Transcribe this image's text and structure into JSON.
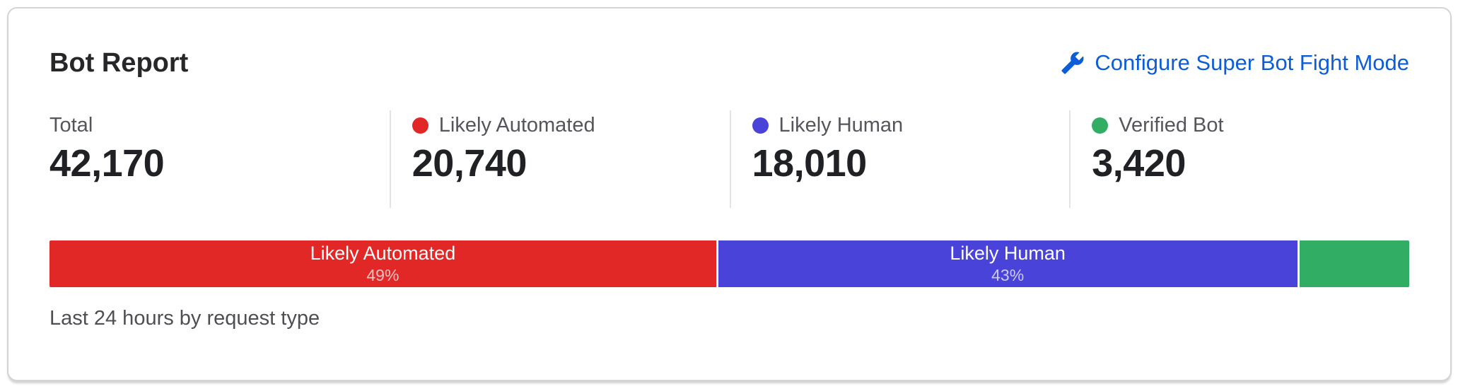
{
  "header": {
    "title": "Bot Report",
    "configure_link": {
      "label": "Configure Super Bot Fight Mode",
      "icon": "wrench-icon",
      "color": "#0d5dd8"
    }
  },
  "colors": {
    "likely_automated": "#e12826",
    "likely_human": "#4a43d9",
    "verified_bot": "#31ad64",
    "link_blue": "#0d5dd8"
  },
  "stats": [
    {
      "label": "Total",
      "value": "42,170",
      "dot_color": ""
    },
    {
      "label": "Likely Automated",
      "value": "20,740",
      "dot_color": "#e12826"
    },
    {
      "label": "Likely Human",
      "value": "18,010",
      "dot_color": "#4a43d9"
    },
    {
      "label": "Verified Bot",
      "value": "3,420",
      "dot_color": "#31ad64"
    }
  ],
  "chart_data": {
    "type": "bar",
    "orientation": "horizontal-stacked",
    "title": "Bot Report",
    "caption": "Last 24 hours by request type",
    "total": 42170,
    "categories": [
      "Likely Automated",
      "Likely Human",
      "Verified Bot"
    ],
    "values": [
      20740,
      18010,
      3420
    ],
    "segments": [
      {
        "label": "Likely Automated",
        "value": 20740,
        "percent_label": "49%",
        "color": "#e12826",
        "show_text": true
      },
      {
        "label": "Likely Human",
        "value": 18010,
        "percent_label": "43%",
        "color": "#4a43d9",
        "show_text": true
      },
      {
        "label": "Verified Bot",
        "value": 3420,
        "percent_label": "",
        "color": "#31ad64",
        "show_text": false
      }
    ]
  },
  "footer": {
    "caption": "Last 24 hours by request type"
  }
}
